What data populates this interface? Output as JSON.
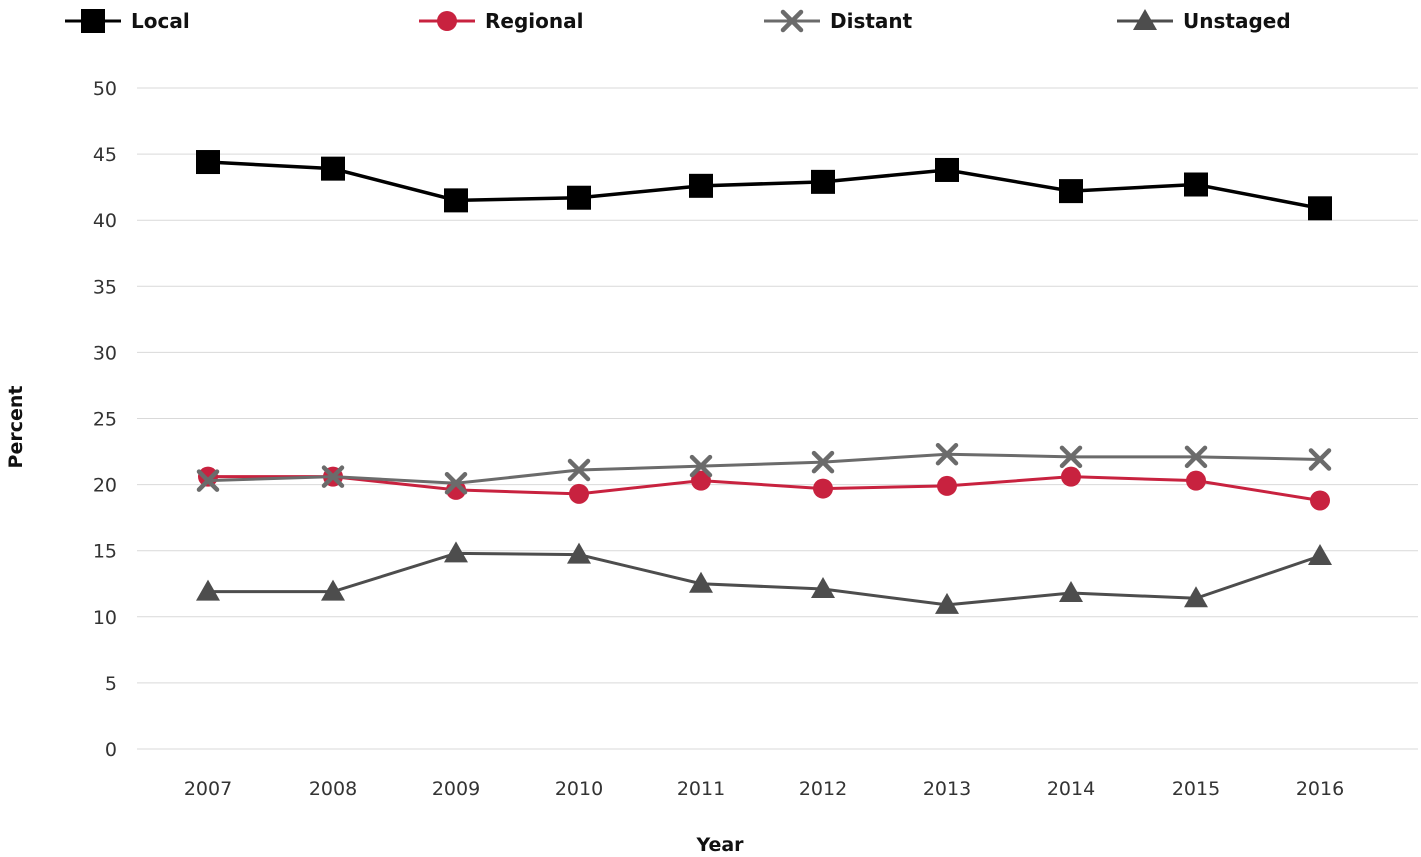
{
  "chart_data": {
    "type": "line",
    "title": "",
    "xlabel": "Year",
    "ylabel": "Percent",
    "ylim": [
      0,
      50
    ],
    "yticks": [
      "0",
      "5",
      "10",
      "15",
      "20",
      "25",
      "30",
      "35",
      "40",
      "45",
      "50"
    ],
    "categories": [
      "2007",
      "2008",
      "2009",
      "2010",
      "2011",
      "2012",
      "2013",
      "2014",
      "2015",
      "2016"
    ],
    "grid": true,
    "legend_position": "top",
    "series": [
      {
        "name": "Local",
        "color": "#000000",
        "marker": "square",
        "values": [
          44.4,
          43.9,
          41.5,
          41.7,
          42.6,
          42.9,
          43.8,
          42.2,
          42.7,
          40.9
        ]
      },
      {
        "name": "Regional",
        "color": "#c8223f",
        "marker": "circle",
        "values": [
          20.6,
          20.6,
          19.6,
          19.3,
          20.3,
          19.7,
          19.9,
          20.6,
          20.3,
          18.8
        ]
      },
      {
        "name": "Distant",
        "color": "#6b6b6b",
        "marker": "x",
        "values": [
          20.3,
          20.6,
          20.1,
          21.1,
          21.4,
          21.7,
          22.3,
          22.1,
          22.1,
          21.9
        ]
      },
      {
        "name": "Unstaged",
        "color": "#4d4d4d",
        "marker": "triangle",
        "values": [
          11.9,
          11.9,
          14.8,
          14.7,
          12.5,
          12.1,
          10.9,
          11.8,
          11.4,
          14.6
        ]
      }
    ]
  }
}
